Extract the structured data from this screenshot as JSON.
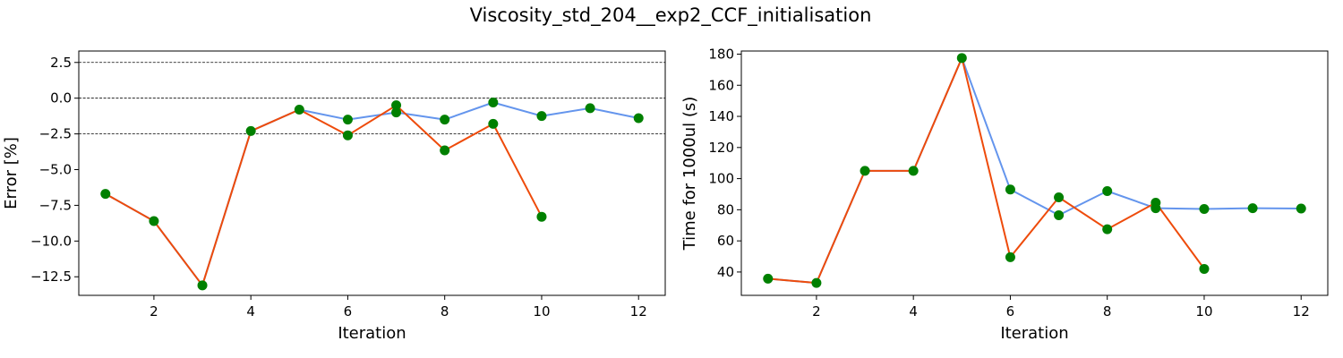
{
  "figure": {
    "title": "Viscosity_std_204__exp2_CCF_initialisation"
  },
  "colors": {
    "line_a": "#6495ED",
    "line_b": "#EE4B0B",
    "markers": "#008000",
    "reference_lines": "#000000"
  },
  "chart_data": [
    {
      "type": "line",
      "title": "",
      "xlabel": "Iteration",
      "ylabel": "Error [%]",
      "xlim": [
        0.45,
        12.55
      ],
      "ylim": [
        -13.8,
        3.3
      ],
      "xticks": [
        2,
        4,
        6,
        8,
        10,
        12
      ],
      "yticks": [
        -12.5,
        -10.0,
        -7.5,
        -5.0,
        -2.5,
        0.0,
        2.5
      ],
      "reference_lines": [
        2.5,
        0.0,
        -2.5
      ],
      "grid": false,
      "series": [
        {
          "color": "#6495ED",
          "x": [
            1,
            2,
            3,
            4,
            5,
            6,
            7,
            8,
            9,
            10,
            11,
            12
          ],
          "y": [
            -6.7,
            -8.6,
            -13.1,
            -2.3,
            -0.8,
            -1.5,
            -1.0,
            -1.5,
            -0.3,
            -1.25,
            -0.7,
            -1.4
          ]
        },
        {
          "color": "#EE4B0B",
          "x": [
            1,
            2,
            3,
            4,
            5,
            6,
            7,
            8,
            9,
            10
          ],
          "y": [
            -6.7,
            -8.6,
            -13.1,
            -2.3,
            -0.8,
            -2.6,
            -0.5,
            -3.65,
            -1.8,
            -8.3
          ]
        }
      ],
      "marker_series": {
        "color": "#008000",
        "x": [
          1,
          2,
          3,
          4,
          5,
          6,
          6,
          7,
          7,
          8,
          8,
          9,
          9,
          10,
          10,
          11,
          12
        ],
        "y": [
          -6.7,
          -8.6,
          -13.1,
          -2.3,
          -0.8,
          -1.5,
          -2.6,
          -1.0,
          -0.5,
          -1.5,
          -3.65,
          -0.3,
          -1.8,
          -1.25,
          -8.3,
          -0.7,
          -1.4
        ]
      }
    },
    {
      "type": "line",
      "title": "",
      "xlabel": "Iteration",
      "ylabel": "Time for 1000ul (s)",
      "xlim": [
        0.45,
        12.55
      ],
      "ylim": [
        25,
        182
      ],
      "xticks": [
        2,
        4,
        6,
        8,
        10,
        12
      ],
      "yticks": [
        40,
        60,
        80,
        100,
        120,
        140,
        160,
        180
      ],
      "reference_lines": [],
      "grid": false,
      "series": [
        {
          "color": "#6495ED",
          "x": [
            1,
            2,
            3,
            4,
            5,
            6,
            7,
            8,
            9,
            10,
            11,
            12
          ],
          "y": [
            35.7,
            33.0,
            105.0,
            105.0,
            177.5,
            93.0,
            76.5,
            92.0,
            81.0,
            80.5,
            81.0,
            80.8
          ]
        },
        {
          "color": "#EE4B0B",
          "x": [
            1,
            2,
            3,
            4,
            5,
            6,
            7,
            8,
            9,
            10
          ],
          "y": [
            35.7,
            33.0,
            105.0,
            105.0,
            177.5,
            49.5,
            88.0,
            67.5,
            84.5,
            42.0
          ]
        }
      ],
      "marker_series": {
        "color": "#008000",
        "x": [
          1,
          2,
          3,
          4,
          5,
          6,
          6,
          7,
          7,
          8,
          8,
          9,
          9,
          10,
          10,
          11,
          12
        ],
        "y": [
          35.7,
          33.0,
          105.0,
          105.0,
          177.5,
          93.0,
          49.5,
          76.5,
          88.0,
          92.0,
          67.5,
          81.0,
          84.5,
          80.5,
          42.0,
          81.0,
          80.8
        ]
      }
    }
  ]
}
